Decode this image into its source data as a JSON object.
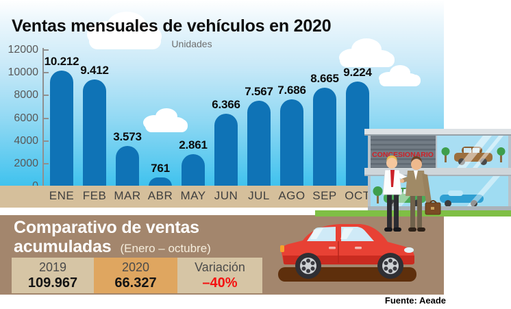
{
  "title": "Ventas mensuales de vehículos en 2020",
  "units_label": "Unidades",
  "chart_data": {
    "type": "bar",
    "title": "Ventas mensuales de vehículos en 2020",
    "ylabel": "Unidades",
    "categories": [
      "ENE",
      "FEB",
      "MAR",
      "ABR",
      "MAY",
      "JUN",
      "JUL",
      "AGO",
      "SEP",
      "OCT"
    ],
    "values": [
      10212,
      9412,
      3573,
      761,
      2861,
      6366,
      7567,
      7686,
      8665,
      9224
    ],
    "value_labels": [
      "10.212",
      "9.412",
      "3.573",
      "761",
      "2.861",
      "6.366",
      "7.567",
      "7.686",
      "8.665",
      "9.224"
    ],
    "ylim": [
      0,
      12000
    ],
    "yticks": [
      0,
      2000,
      4000,
      6000,
      8000,
      10000,
      12000
    ],
    "grid": false,
    "legend": null,
    "bar_color": "#0f73b6"
  },
  "comparison": {
    "title_line1": "Comparativo de ventas",
    "title_line2": "acumuladas",
    "subtitle": "(Enero – octubre)",
    "columns": [
      {
        "header": "2019",
        "value": "109.967"
      },
      {
        "header": "2020",
        "value": "66.327"
      },
      {
        "header": "Variación",
        "value": "–40%"
      }
    ]
  },
  "dealership_sign": "CONCESIONARIO",
  "source": "Fuente: Aeade",
  "colors": {
    "bar": "#0f73b6",
    "sky_top": "#ffffff",
    "sky_bottom": "#3fc2ee",
    "month_strip": "#d5bf9b",
    "panel_brown": "#a3866d",
    "cell_beige": "#d6c5a5",
    "cell_orange": "#dfa660",
    "negative_red": "#f41111",
    "grass_green": "#7fbf45",
    "car_red": "#e84134",
    "sign_red": "#cf2127"
  }
}
